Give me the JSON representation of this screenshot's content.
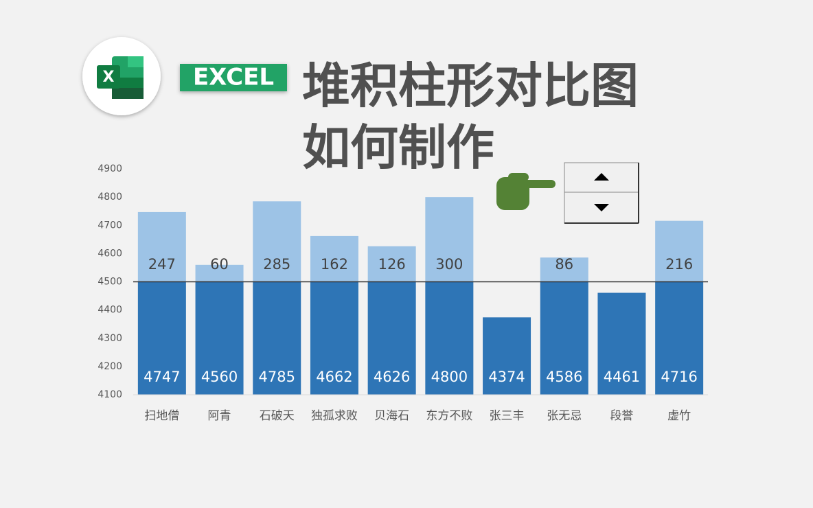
{
  "logo_text": "X",
  "badge": "EXCEL",
  "chart_data": {
    "type": "threshold-bar",
    "title": "堆积柱形对比图",
    "subtitle": "如何制作",
    "categories": [
      "扫地僧",
      "阿青",
      "石破天",
      "独孤求败",
      "贝海石",
      "东方不败",
      "张三丰",
      "张无忌",
      "段誉",
      "虚竹"
    ],
    "series": [
      {
        "color": "#2e75b6",
        "values": [
          4747,
          4560,
          4785,
          4662,
          4626,
          4800,
          4374,
          4586,
          4461,
          4716
        ]
      },
      {
        "color": "#9dc3e6",
        "values": [
          247,
          60,
          285,
          162,
          126,
          300,
          null,
          86,
          null,
          216
        ]
      }
    ],
    "threshold": 4500,
    "ylim": [
      4100,
      4900
    ],
    "yticks": [
      4100,
      4200,
      4300,
      4400,
      4500,
      4600,
      4700,
      4800,
      4900
    ]
  }
}
